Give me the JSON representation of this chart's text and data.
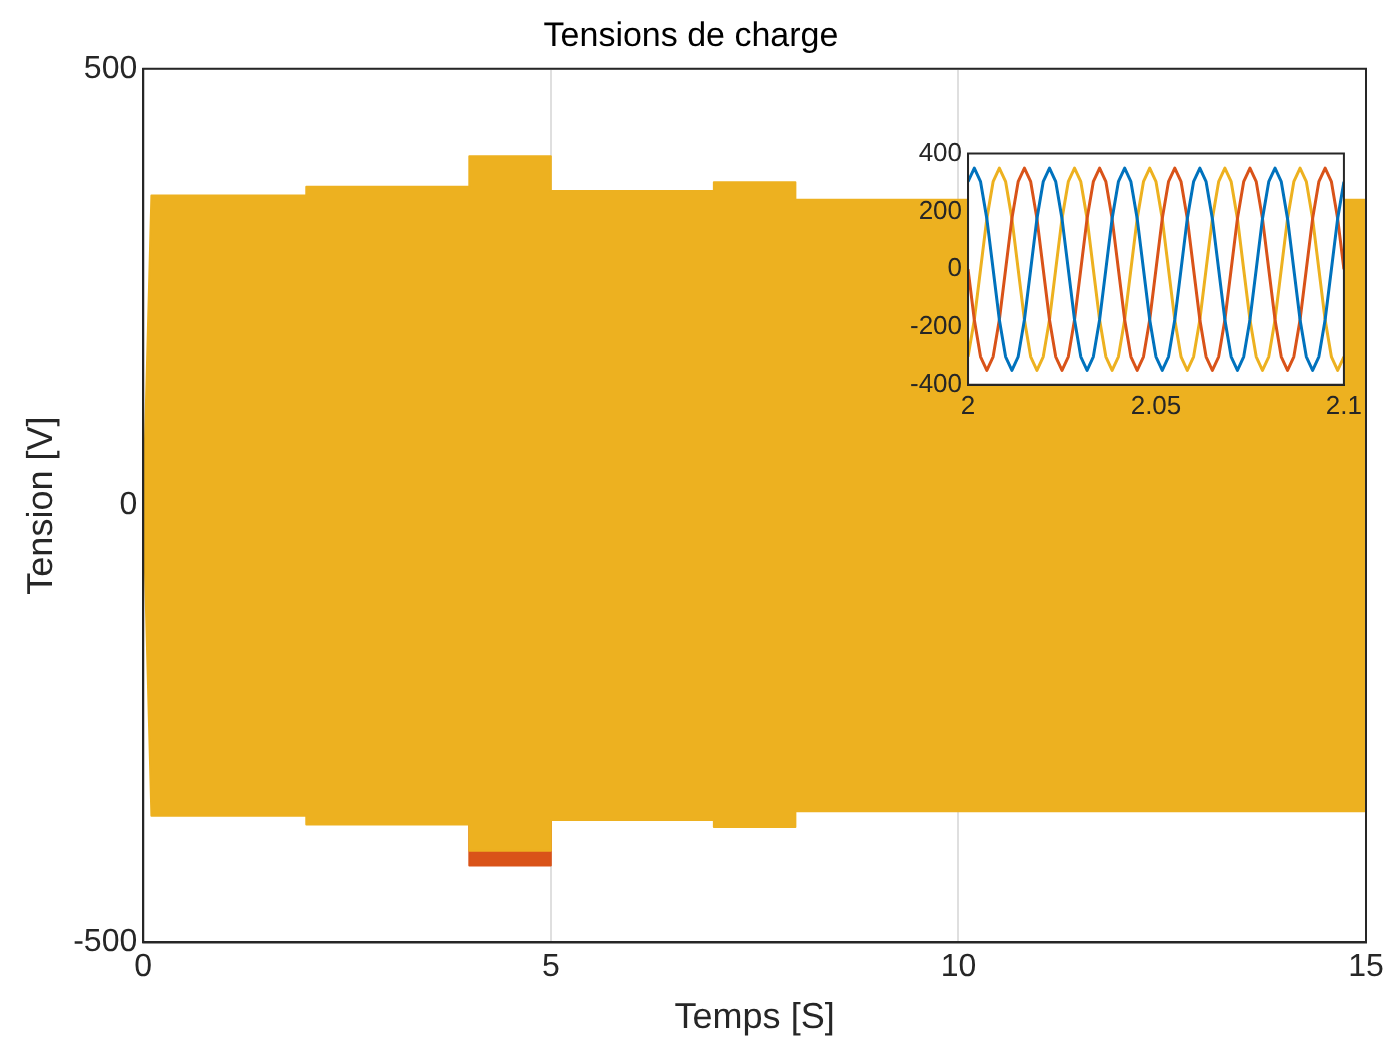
{
  "chart_data": [
    {
      "type": "area",
      "title": "Tensions de charge",
      "xlabel": "Temps [S]",
      "ylabel": "Tension [V]",
      "x": [
        0,
        0.1,
        2,
        2,
        4,
        4,
        5,
        5,
        7,
        7,
        8,
        8,
        15
      ],
      "series": [
        {
          "color": "#d95319",
          "values": [
            null,
            null,
            null,
            null,
            null,
            -412,
            -412,
            null,
            null,
            null,
            null,
            null,
            null
          ]
        },
        {
          "color": "#edb120",
          "values": [
            0,
            355,
            355,
            365,
            365,
            400,
            400,
            360,
            360,
            370,
            370,
            350,
            350
          ]
        },
        {
          "color": "#edb120",
          "values": [
            0,
            -355,
            -355,
            -365,
            -365,
            -395,
            -395,
            -360,
            -360,
            -368,
            -368,
            -350,
            -350
          ]
        }
      ],
      "xlim": [
        0,
        15
      ],
      "xticks": [
        0,
        5,
        10,
        15
      ],
      "ylim": [
        -500,
        500
      ],
      "yticks": [
        -500,
        0,
        500
      ],
      "grid": true
    },
    {
      "type": "line",
      "x": [
        2,
        2.00167,
        2.00333,
        2.005,
        2.00667,
        2.00833,
        2.01,
        2.01167,
        2.01333,
        2.015,
        2.01667,
        2.01833,
        2.02,
        2.02167,
        2.02333,
        2.025,
        2.02667,
        2.02833,
        2.03,
        2.03167,
        2.03333,
        2.035,
        2.03667,
        2.03833,
        2.04,
        2.04167,
        2.04333,
        2.045,
        2.04667,
        2.04833,
        2.05,
        2.05167,
        2.05333,
        2.055,
        2.05667,
        2.05833,
        2.06,
        2.06167,
        2.06333,
        2.065,
        2.06667,
        2.06833,
        2.07,
        2.07167,
        2.07333,
        2.075,
        2.07667,
        2.07833,
        2.08,
        2.08167,
        2.08333,
        2.085,
        2.08667,
        2.08833,
        2.09,
        2.09167,
        2.09333,
        2.095,
        2.09667,
        2.09833,
        2.1
      ],
      "series": [
        {
          "color": "#0072bd",
          "values": [
            303,
            350,
            303,
            175,
            0,
            -175,
            -303,
            -350,
            -303,
            -175,
            0,
            175,
            303,
            350,
            303,
            175,
            0,
            -175,
            -303,
            -350,
            -303,
            -175,
            0,
            175,
            303,
            350,
            303,
            175,
            0,
            -175,
            -303,
            -350,
            -303,
            -175,
            0,
            175,
            303,
            350,
            303,
            175,
            0,
            -175,
            -303,
            -350,
            -303,
            -175,
            0,
            175,
            303,
            350,
            303,
            175,
            0,
            -175,
            -303,
            -350,
            -303,
            -175,
            0,
            175,
            303
          ]
        },
        {
          "color": "#d95319",
          "values": [
            0,
            -175,
            -303,
            -350,
            -303,
            -175,
            0,
            175,
            303,
            350,
            303,
            175,
            0,
            -175,
            -303,
            -350,
            -303,
            -175,
            0,
            175,
            303,
            350,
            303,
            175,
            0,
            -175,
            -303,
            -350,
            -303,
            -175,
            0,
            175,
            303,
            350,
            303,
            175,
            0,
            -175,
            -303,
            -350,
            -303,
            -175,
            0,
            175,
            303,
            350,
            303,
            175,
            0,
            -175,
            -303,
            -350,
            -303,
            -175,
            0,
            175,
            303,
            350,
            303,
            175,
            0
          ]
        },
        {
          "color": "#edb120",
          "values": [
            -303,
            -175,
            0,
            175,
            303,
            350,
            303,
            175,
            0,
            -175,
            -303,
            -350,
            -303,
            -175,
            0,
            175,
            303,
            350,
            303,
            175,
            0,
            -175,
            -303,
            -350,
            -303,
            -175,
            0,
            175,
            303,
            350,
            303,
            175,
            0,
            -175,
            -303,
            -350,
            -303,
            -175,
            0,
            175,
            303,
            350,
            303,
            175,
            0,
            -175,
            -303,
            -350,
            -303,
            -175,
            0,
            175,
            303,
            350,
            303,
            175,
            0,
            -175,
            -303,
            -350,
            -303
          ]
        }
      ],
      "xlim": [
        2,
        2.1
      ],
      "xticks": [
        2,
        2.05,
        2.1
      ],
      "ylim": [
        -400,
        400
      ],
      "yticks": [
        -400,
        -200,
        0,
        200,
        400
      ]
    }
  ]
}
